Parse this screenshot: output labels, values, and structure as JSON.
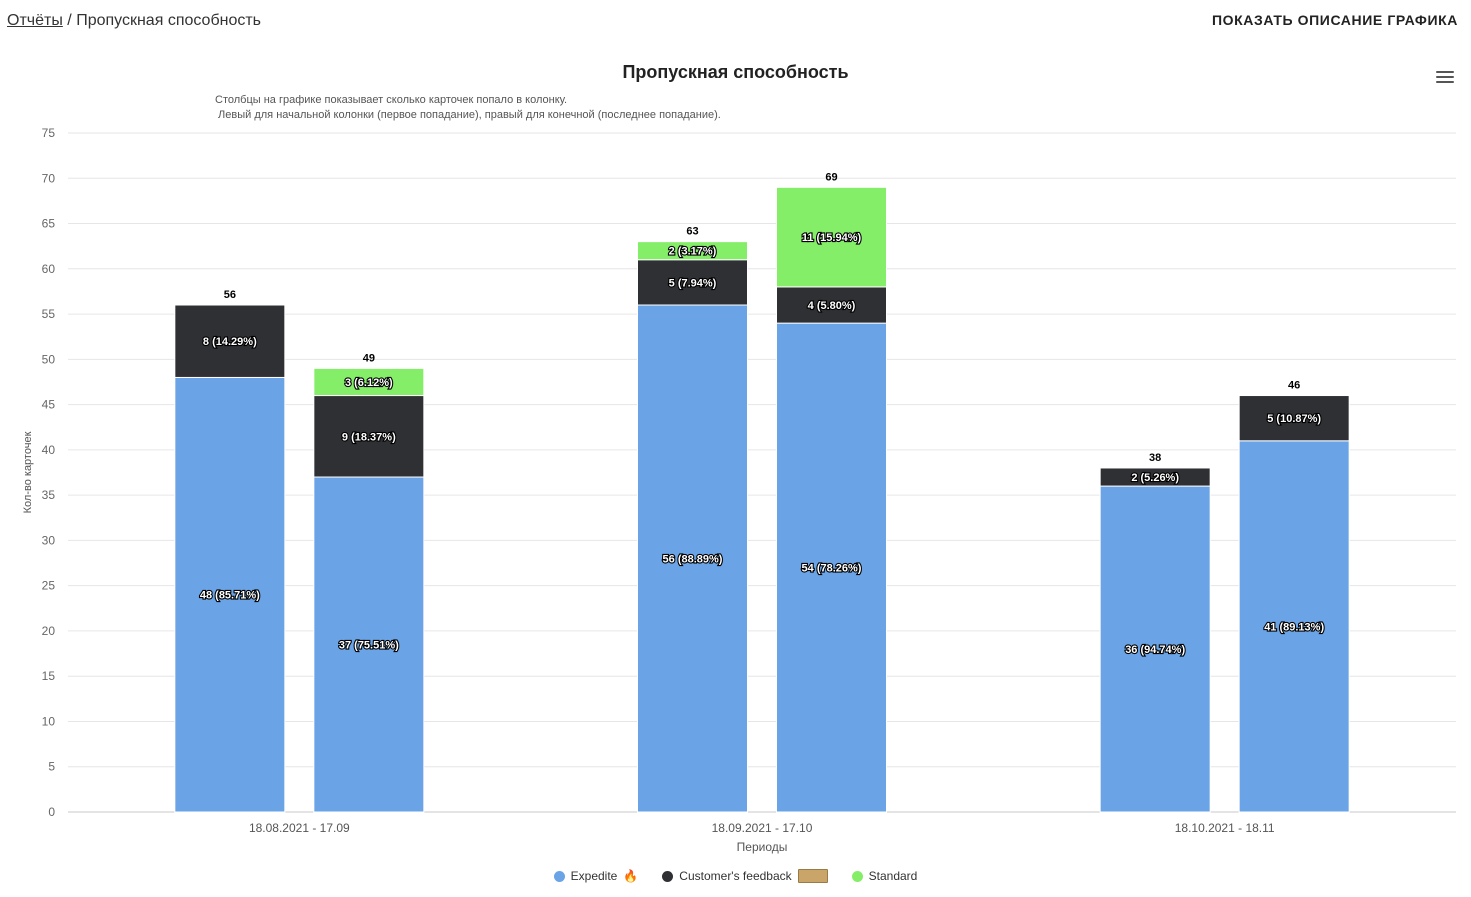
{
  "breadcrumb": {
    "root": "Отчёты",
    "separator": " / ",
    "current": "Пропускная способность"
  },
  "header": {
    "show_description": "ПОКАЗАТЬ ОПИСАНИЕ ГРАФИКА"
  },
  "chart_data": {
    "type": "bar",
    "stacked": true,
    "title": "Пропускная способность",
    "subtitle": [
      "Столбцы на графике показывает сколько карточек попало в колонку.",
      " Левый для начальной колонки (первое попадание), правый для конечной (последнее попадание)."
    ],
    "xlabel": "Периоды",
    "ylabel": "Кол-во карточек",
    "ylim": [
      0,
      75
    ],
    "yticks": [
      0,
      5,
      10,
      15,
      20,
      25,
      30,
      35,
      40,
      45,
      50,
      55,
      60,
      65,
      70,
      75
    ],
    "grid": true,
    "legend_position": "bottom-center",
    "categories": [
      "18.08.2021 - 17.09",
      "18.09.2021 - 17.10",
      "18.10.2021 - 18.11"
    ],
    "series": [
      {
        "name": "Expedite",
        "color": "#6aa4e6",
        "values": [
          [
            48,
            37
          ],
          [
            56,
            54
          ],
          [
            36,
            41
          ]
        ],
        "labels": [
          [
            "48 (85.71%)",
            "37 (75.51%)"
          ],
          [
            "56 (88.89%)",
            "54 (78.26%)"
          ],
          [
            "36 (94.74%)",
            "41 (89.13%)"
          ]
        ]
      },
      {
        "name": "Customer's feedback",
        "color": "#2f3034",
        "values": [
          [
            8,
            9
          ],
          [
            5,
            4
          ],
          [
            2,
            5
          ]
        ],
        "labels": [
          [
            "8 (14.29%)",
            "9 (18.37%)"
          ],
          [
            "5 (7.94%)",
            "4 (5.80%)"
          ],
          [
            "2 (5.26%)",
            "5 (10.87%)"
          ]
        ]
      },
      {
        "name": "Standard",
        "color": "#85ee68",
        "values": [
          [
            0,
            3
          ],
          [
            2,
            11
          ],
          [
            0,
            0
          ]
        ],
        "labels": [
          [
            "",
            "3 (6.12%)"
          ],
          [
            "2 (3.17%)",
            "11 (15.94%)"
          ],
          [
            "",
            ""
          ]
        ]
      }
    ],
    "totals": [
      [
        56,
        49
      ],
      [
        63,
        69
      ],
      [
        38,
        46
      ]
    ]
  },
  "legend": {
    "items": [
      {
        "name": "Expedite",
        "color": "#6aa4e6",
        "icon": "fire-icon"
      },
      {
        "name": "Customer's feedback",
        "color": "#2f3034",
        "icon": "money-icon"
      },
      {
        "name": "Standard",
        "color": "#85ee68",
        "icon": ""
      }
    ]
  }
}
